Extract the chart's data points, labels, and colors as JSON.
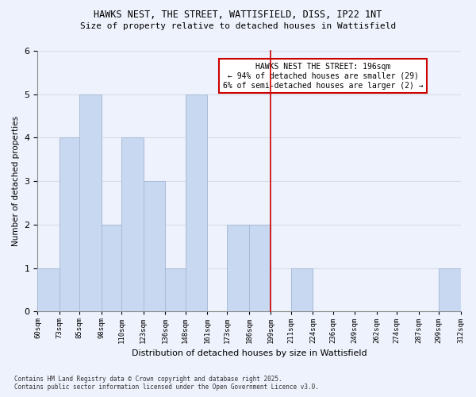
{
  "title1": "HAWKS NEST, THE STREET, WATTISFIELD, DISS, IP22 1NT",
  "title2": "Size of property relative to detached houses in Wattisfield",
  "xlabel": "Distribution of detached houses by size in Wattisfield",
  "ylabel": "Number of detached properties",
  "bin_edges": [
    60,
    73,
    85,
    98,
    110,
    123,
    136,
    148,
    161,
    173,
    186,
    199,
    211,
    224,
    236,
    249,
    262,
    274,
    287,
    299,
    312
  ],
  "counts": [
    1,
    4,
    5,
    2,
    4,
    3,
    1,
    5,
    0,
    2,
    2,
    0,
    1,
    0,
    0,
    0,
    0,
    0,
    0,
    1
  ],
  "bar_color": "#c8d8f0",
  "bar_edge_color": "#a8bcd8",
  "reference_line_x": 199,
  "reference_line_color": "#cc0000",
  "annotation_line1": "HAWKS NEST THE STREET: 196sqm",
  "annotation_line2": "← 94% of detached houses are smaller (29)",
  "annotation_line3": "6% of semi-detached houses are larger (2) →",
  "annotation_box_color": "#ffffff",
  "annotation_box_edge": "#cc0000",
  "ylim": [
    0,
    6
  ],
  "yticks": [
    0,
    1,
    2,
    3,
    4,
    5,
    6
  ],
  "background_color": "#eef2fc",
  "grid_color": "#d8dce8",
  "footnote1": "Contains HM Land Registry data © Crown copyright and database right 2025.",
  "footnote2": "Contains public sector information licensed under the Open Government Licence v3.0."
}
